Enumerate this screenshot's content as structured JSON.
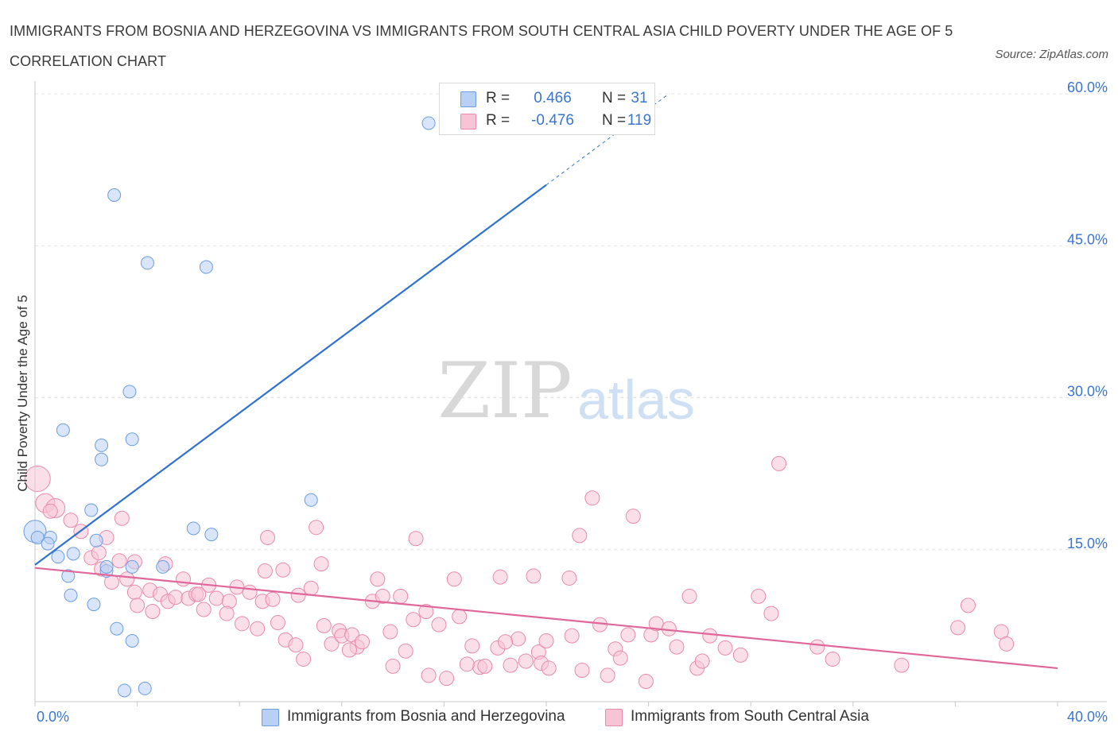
{
  "title": "IMMIGRANTS FROM BOSNIA AND HERZEGOVINA VS IMMIGRANTS FROM SOUTH CENTRAL ASIA CHILD POVERTY UNDER THE AGE OF 5 CORRELATION CHART",
  "source": "Source: ZipAtlas.com",
  "watermark": {
    "zip": "ZIP",
    "atlas": "atlas"
  },
  "legend": {
    "r_label": "R =",
    "n_label": "N =",
    "series": [
      {
        "name": "Immigrants from Bosnia and Herzegovina",
        "r": "0.466",
        "n": "31",
        "fill": "#b9d0f5",
        "stroke": "#6b9de0"
      },
      {
        "name": "Immigrants from South Central Asia",
        "r": "-0.476",
        "n": "119",
        "fill": "#f7c4d6",
        "stroke": "#e98aaa"
      }
    ]
  },
  "chart_data": {
    "type": "scatter",
    "title": "IMMIGRANTS FROM BOSNIA AND HERZEGOVINA VS IMMIGRANTS FROM SOUTH CENTRAL ASIA CHILD POVERTY UNDER THE AGE OF 5 CORRELATION CHART",
    "xlabel": "",
    "ylabel": "Child Poverty Under the Age of 5",
    "xlim": [
      0,
      40
    ],
    "ylim": [
      0,
      60
    ],
    "x_tick_labels": [
      "0.0%",
      "40.0%"
    ],
    "y_ticks": [
      15,
      30,
      45,
      60
    ],
    "y_tick_labels": [
      "15.0%",
      "30.0%",
      "45.0%",
      "60.0%"
    ],
    "grid": true,
    "colors": {
      "blue": "#6b9de0",
      "blue_line": "#2f72cf",
      "pink": "#e98aaa",
      "pink_line": "#e0679a",
      "axis_text": "#3a76cf"
    },
    "series": [
      {
        "name": "Immigrants from Bosnia and Herzegovina",
        "points": [
          [
            0.0,
            16.8
          ],
          [
            0.1,
            16.2
          ],
          [
            0.6,
            16.2
          ],
          [
            0.9,
            14.3
          ],
          [
            1.5,
            14.6
          ],
          [
            2.4,
            15.9
          ],
          [
            3.8,
            13.3
          ],
          [
            2.8,
            12.9
          ],
          [
            1.3,
            12.4
          ],
          [
            1.4,
            10.5
          ],
          [
            2.3,
            9.6
          ],
          [
            1.1,
            26.8
          ],
          [
            2.6,
            25.3
          ],
          [
            2.6,
            23.9
          ],
          [
            3.7,
            30.6
          ],
          [
            3.8,
            25.9
          ],
          [
            5.0,
            13.3
          ],
          [
            2.2,
            18.9
          ],
          [
            2.8,
            13.3
          ],
          [
            6.2,
            17.1
          ],
          [
            6.9,
            16.5
          ],
          [
            10.8,
            19.9
          ],
          [
            3.2,
            7.2
          ],
          [
            3.8,
            6.0
          ],
          [
            4.3,
            1.3
          ],
          [
            3.5,
            1.1
          ],
          [
            3.1,
            50.0
          ],
          [
            4.4,
            43.3
          ],
          [
            6.7,
            42.9
          ],
          [
            15.4,
            57.1
          ],
          [
            0.5,
            15.6
          ]
        ],
        "trend": {
          "x0": 0.0,
          "y0": 13.5,
          "x1": 20.0,
          "y1": 51.0,
          "dash_to_x": 24.8,
          "dash_to_y": 60.0
        }
      },
      {
        "name": "Immigrants from South Central Asia",
        "points": [
          [
            0.1,
            22.0
          ],
          [
            0.4,
            19.6
          ],
          [
            0.8,
            19.1
          ],
          [
            0.6,
            18.8
          ],
          [
            1.4,
            17.9
          ],
          [
            1.8,
            16.8
          ],
          [
            2.2,
            14.2
          ],
          [
            2.5,
            14.7
          ],
          [
            2.6,
            13.1
          ],
          [
            3.3,
            13.9
          ],
          [
            2.8,
            16.2
          ],
          [
            3.4,
            18.1
          ],
          [
            3.0,
            11.8
          ],
          [
            3.6,
            12.1
          ],
          [
            3.9,
            10.8
          ],
          [
            4.0,
            9.5
          ],
          [
            4.5,
            11.0
          ],
          [
            4.6,
            8.9
          ],
          [
            4.9,
            10.6
          ],
          [
            5.1,
            13.6
          ],
          [
            5.2,
            9.9
          ],
          [
            5.5,
            10.3
          ],
          [
            5.8,
            12.1
          ],
          [
            6.0,
            10.2
          ],
          [
            6.3,
            10.6
          ],
          [
            6.6,
            9.1
          ],
          [
            6.8,
            11.5
          ],
          [
            7.1,
            10.2
          ],
          [
            7.6,
            9.9
          ],
          [
            7.9,
            11.3
          ],
          [
            8.1,
            7.7
          ],
          [
            8.4,
            10.8
          ],
          [
            8.7,
            7.2
          ],
          [
            8.9,
            9.9
          ],
          [
            9.0,
            12.9
          ],
          [
            9.1,
            16.2
          ],
          [
            9.5,
            7.8
          ],
          [
            9.7,
            13.0
          ],
          [
            9.8,
            6.1
          ],
          [
            10.2,
            5.6
          ],
          [
            10.3,
            10.5
          ],
          [
            10.5,
            4.2
          ],
          [
            10.8,
            11.2
          ],
          [
            11.0,
            17.2
          ],
          [
            11.2,
            13.6
          ],
          [
            11.6,
            5.7
          ],
          [
            11.9,
            7.0
          ],
          [
            12.0,
            6.5
          ],
          [
            12.4,
            6.6
          ],
          [
            12.6,
            5.4
          ],
          [
            12.8,
            5.9
          ],
          [
            13.2,
            9.9
          ],
          [
            13.4,
            12.1
          ],
          [
            13.6,
            10.4
          ],
          [
            13.9,
            6.9
          ],
          [
            14.0,
            3.5
          ],
          [
            14.3,
            10.4
          ],
          [
            14.5,
            5.0
          ],
          [
            14.8,
            8.1
          ],
          [
            14.9,
            16.1
          ],
          [
            15.3,
            8.9
          ],
          [
            15.4,
            2.6
          ],
          [
            15.8,
            7.6
          ],
          [
            16.1,
            2.3
          ],
          [
            16.4,
            12.1
          ],
          [
            16.6,
            8.4
          ],
          [
            17.1,
            5.5
          ],
          [
            17.4,
            3.4
          ],
          [
            17.6,
            3.5
          ],
          [
            18.1,
            5.3
          ],
          [
            18.2,
            12.3
          ],
          [
            18.6,
            3.6
          ],
          [
            18.9,
            6.2
          ],
          [
            19.2,
            4.0
          ],
          [
            19.5,
            12.4
          ],
          [
            19.7,
            4.9
          ],
          [
            19.8,
            3.8
          ],
          [
            20.0,
            6.0
          ],
          [
            20.1,
            3.3
          ],
          [
            20.9,
            12.2
          ],
          [
            21.0,
            6.5
          ],
          [
            21.3,
            16.4
          ],
          [
            21.4,
            3.1
          ],
          [
            21.8,
            20.1
          ],
          [
            22.1,
            7.6
          ],
          [
            22.4,
            2.6
          ],
          [
            22.7,
            5.2
          ],
          [
            23.2,
            6.6
          ],
          [
            23.4,
            18.3
          ],
          [
            23.9,
            2.0
          ],
          [
            24.1,
            6.6
          ],
          [
            24.3,
            7.7
          ],
          [
            24.8,
            7.2
          ],
          [
            25.1,
            5.4
          ],
          [
            25.6,
            10.4
          ],
          [
            25.9,
            3.3
          ],
          [
            26.1,
            4.0
          ],
          [
            26.4,
            6.5
          ],
          [
            27.0,
            5.3
          ],
          [
            28.3,
            10.4
          ],
          [
            28.8,
            8.7
          ],
          [
            29.1,
            23.5
          ],
          [
            30.6,
            5.4
          ],
          [
            31.2,
            4.2
          ],
          [
            33.9,
            3.6
          ],
          [
            36.1,
            7.3
          ],
          [
            36.5,
            9.5
          ],
          [
            37.8,
            6.9
          ],
          [
            38.0,
            5.7
          ],
          [
            3.9,
            13.8
          ],
          [
            6.4,
            10.6
          ],
          [
            7.5,
            8.7
          ],
          [
            9.3,
            10.1
          ],
          [
            11.3,
            7.5
          ],
          [
            12.3,
            5.1
          ],
          [
            16.9,
            3.7
          ],
          [
            18.4,
            5.9
          ],
          [
            22.9,
            4.3
          ],
          [
            27.6,
            4.6
          ]
        ],
        "trend": {
          "x0": 0.0,
          "y0": 13.2,
          "x1": 40.0,
          "y1": 3.3
        }
      }
    ]
  }
}
